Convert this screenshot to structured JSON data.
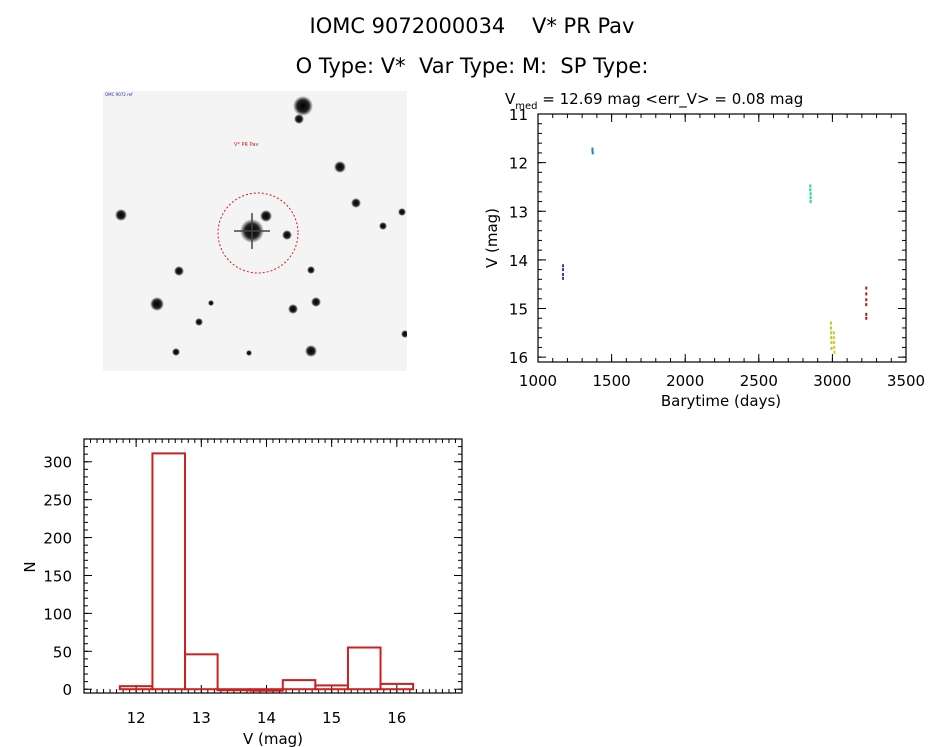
{
  "header": {
    "title_line1": "IOMC 9072000034    V* PR Pav",
    "title_line2": "O Type: V*  Var Type: M:  SP Type:"
  },
  "stamp": {
    "corner_label": "OMC 9072 ref",
    "target_label": "V* PR Pav"
  },
  "chart_data": [
    {
      "type": "scatter",
      "title": "V_med = 12.69 mag <err_V> = 0.08 mag",
      "title_main": "V",
      "title_sub": "med",
      "title_rest": " = 12.69 mag <err_V> = 0.08 mag",
      "xlabel": "Barytime (days)",
      "ylabel": "V (mag)",
      "xlim": [
        1000,
        3500
      ],
      "ylim": [
        16.1,
        11.0
      ],
      "x_ticks": [
        1000,
        1500,
        2000,
        2500,
        3000,
        3500
      ],
      "y_ticks": [
        11,
        12,
        13,
        14,
        15,
        16
      ],
      "series": [
        {
          "name": "g1",
          "color": "#5a2ca0",
          "points": [
            [
              1170,
              14.12
            ],
            [
              1170,
              14.2
            ],
            [
              1170,
              14.3
            ],
            [
              1170,
              14.38
            ]
          ]
        },
        {
          "name": "g2",
          "color": "#1a8ec8",
          "points": [
            [
              1370,
              11.72
            ],
            [
              1370,
              11.76
            ],
            [
              1372,
              11.8
            ]
          ]
        },
        {
          "name": "g3",
          "color": "#20d890",
          "points": [
            [
              2850,
              12.48
            ],
            [
              2850,
              12.56
            ],
            [
              2852,
              12.64
            ],
            [
              2852,
              12.72
            ],
            [
              2852,
              12.8
            ]
          ]
        },
        {
          "name": "g4",
          "color": "#9ad820",
          "points": [
            [
              2990,
              15.3
            ],
            [
              2990,
              15.4
            ],
            [
              2992,
              15.5
            ],
            [
              2992,
              15.6
            ],
            [
              2994,
              15.7
            ],
            [
              2994,
              15.82
            ]
          ]
        },
        {
          "name": "g5",
          "color": "#e8c020",
          "points": [
            [
              3010,
              15.5
            ],
            [
              3010,
              15.6
            ],
            [
              3012,
              15.7
            ],
            [
              3012,
              15.8
            ],
            [
              3014,
              15.9
            ]
          ]
        },
        {
          "name": "g6",
          "color": "#b01818",
          "points": [
            [
              3230,
              14.58
            ],
            [
              3230,
              14.7
            ],
            [
              3230,
              14.82
            ],
            [
              3230,
              14.92
            ],
            [
              3230,
              15.12
            ],
            [
              3230,
              15.2
            ]
          ]
        }
      ]
    },
    {
      "type": "bar",
      "title": "",
      "xlabel": "V (mag)",
      "ylabel": "N",
      "xlim": [
        11.2,
        17.0
      ],
      "ylim": [
        -5,
        330
      ],
      "x_ticks": [
        12,
        13,
        14,
        15,
        16
      ],
      "y_ticks": [
        0,
        50,
        100,
        150,
        200,
        250,
        300
      ],
      "bin_edges": [
        11.75,
        12.25,
        12.75,
        13.25,
        13.75,
        14.25,
        14.75,
        15.25,
        15.75,
        16.25
      ],
      "values": [
        4,
        311,
        46,
        0,
        -2,
        12,
        5,
        55,
        7
      ],
      "color": "#cc2020"
    }
  ]
}
